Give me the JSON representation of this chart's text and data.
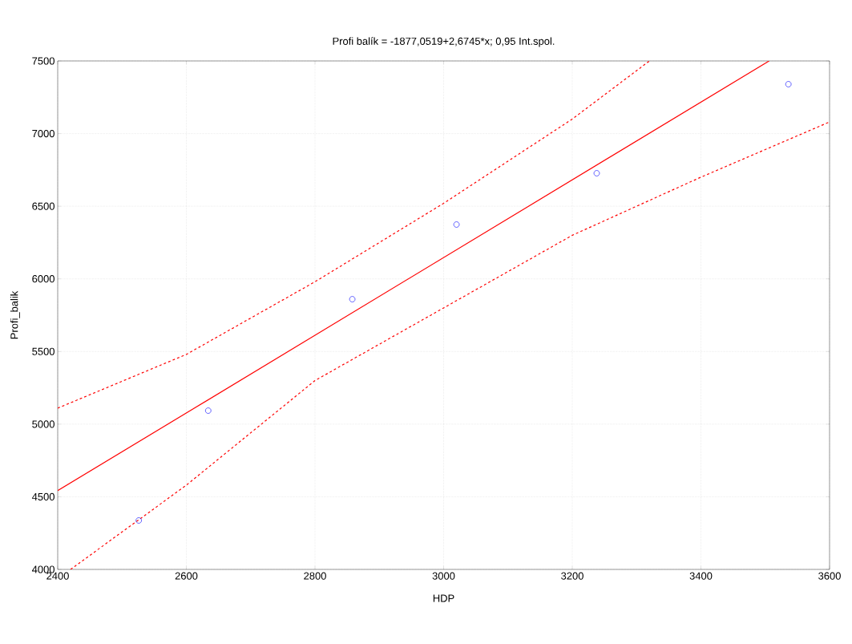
{
  "chart_data": {
    "type": "scatter",
    "title": "Profi balík = -1877,0519+2,6745*x; 0,95 Int.spol.",
    "xlabel": "HDP",
    "ylabel": "Profi_balik",
    "xlim": [
      2400,
      3600
    ],
    "ylim": [
      4000,
      7500
    ],
    "xticks": [
      2400,
      2600,
      2800,
      3000,
      3200,
      3400,
      3600
    ],
    "yticks": [
      4000,
      4500,
      5000,
      5500,
      6000,
      6500,
      7000,
      7500
    ],
    "grid": true,
    "series": [
      {
        "marker": "circle",
        "color": "#0000ff",
        "x": [
          2526,
          2634,
          2858,
          3020,
          3238,
          3536
        ],
        "values": [
          4337,
          5093,
          5860,
          6374,
          6727,
          7340
        ]
      },
      {
        "type": "line",
        "marker": "none",
        "line_style": "solid",
        "color": "#ff0000",
        "x": [
          2400,
          3506
        ],
        "values": [
          4542,
          7500
        ]
      },
      {
        "type": "line",
        "marker": "none",
        "line_style": "dashed",
        "color": "#ff0000",
        "x": [
          2400,
          2600,
          2800,
          3000,
          3200,
          3320
        ],
        "values": [
          5110,
          5480,
          5980,
          6520,
          7100,
          7500
        ]
      },
      {
        "type": "line",
        "marker": "none",
        "line_style": "dashed",
        "color": "#ff0000",
        "x": [
          2420,
          2600,
          2800,
          3000,
          3200,
          3400,
          3600
        ],
        "values": [
          4000,
          4580,
          5300,
          5800,
          6300,
          6700,
          7080
        ]
      }
    ]
  }
}
